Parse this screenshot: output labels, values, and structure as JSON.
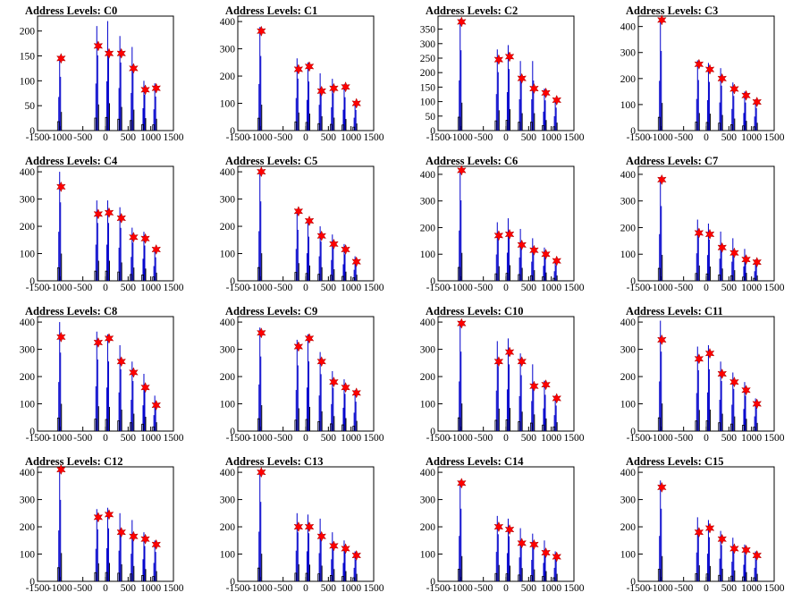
{
  "chart_data": [
    {
      "title": "Address Levels: C0",
      "type": "bar",
      "xlim": [
        -1500,
        1500
      ],
      "yticks": [
        0,
        50,
        100,
        150,
        200
      ],
      "ylim": [
        0,
        230
      ],
      "peaks_x": [
        -1000,
        -180,
        60,
        330,
        600,
        860,
        1100
      ],
      "peak_heights": [
        150,
        210,
        220,
        190,
        168,
        100,
        95
      ],
      "markers": [
        145,
        170,
        155,
        155,
        125,
        82,
        85
      ]
    },
    {
      "title": "Address Levels: C1",
      "type": "bar",
      "xlim": [
        -1500,
        1500
      ],
      "yticks": [
        0,
        100,
        200,
        300,
        400
      ],
      "ylim": [
        0,
        420
      ],
      "peaks_x": [
        -1000,
        -180,
        60,
        330,
        600,
        860,
        1100
      ],
      "peak_heights": [
        380,
        265,
        250,
        210,
        190,
        170,
        105
      ],
      "markers": [
        365,
        225,
        235,
        145,
        155,
        160,
        100
      ]
    },
    {
      "title": "Address Levels: C2",
      "type": "bar",
      "xlim": [
        -1500,
        1500
      ],
      "yticks": [
        0,
        50,
        100,
        150,
        200,
        250,
        300,
        350
      ],
      "ylim": [
        0,
        395
      ],
      "peaks_x": [
        -1000,
        -180,
        60,
        330,
        600,
        860,
        1100
      ],
      "peak_heights": [
        385,
        280,
        295,
        240,
        240,
        145,
        110
      ],
      "markers": [
        375,
        245,
        255,
        180,
        145,
        130,
        105
      ]
    },
    {
      "title": "Address Levels: C3",
      "type": "bar",
      "xlim": [
        -1500,
        1500
      ],
      "yticks": [
        0,
        100,
        200,
        300,
        400
      ],
      "ylim": [
        0,
        440
      ],
      "peaks_x": [
        -1000,
        -180,
        60,
        330,
        600,
        860,
        1100
      ],
      "peak_heights": [
        425,
        270,
        260,
        240,
        185,
        150,
        120
      ],
      "markers": [
        425,
        255,
        235,
        200,
        160,
        135,
        110
      ]
    },
    {
      "title": "Address Levels: C4",
      "type": "bar",
      "xlim": [
        -1500,
        1500
      ],
      "yticks": [
        0,
        100,
        200,
        300,
        400
      ],
      "ylim": [
        0,
        420
      ],
      "peaks_x": [
        -1000,
        -180,
        60,
        330,
        600,
        860,
        1100
      ],
      "peak_heights": [
        400,
        295,
        295,
        270,
        195,
        180,
        120
      ],
      "markers": [
        345,
        245,
        250,
        230,
        160,
        155,
        115
      ]
    },
    {
      "title": "Address Levels: C5",
      "type": "bar",
      "xlim": [
        -1500,
        1500
      ],
      "yticks": [
        0,
        100,
        200,
        300,
        400
      ],
      "ylim": [
        0,
        420
      ],
      "peaks_x": [
        -1000,
        -180,
        60,
        330,
        600,
        860,
        1100
      ],
      "peak_heights": [
        405,
        260,
        225,
        200,
        170,
        135,
        90
      ],
      "markers": [
        400,
        255,
        220,
        165,
        135,
        115,
        70
      ]
    },
    {
      "title": "Address Levels: C6",
      "type": "bar",
      "xlim": [
        -1500,
        1500
      ],
      "yticks": [
        0,
        100,
        200,
        300,
        400
      ],
      "ylim": [
        0,
        430
      ],
      "peaks_x": [
        -1000,
        -180,
        60,
        330,
        600,
        860,
        1100
      ],
      "peak_heights": [
        420,
        220,
        235,
        195,
        160,
        125,
        80
      ],
      "markers": [
        415,
        170,
        175,
        135,
        115,
        100,
        75
      ]
    },
    {
      "title": "Address Levels: C7",
      "type": "bar",
      "xlim": [
        -1500,
        1500
      ],
      "yticks": [
        0,
        100,
        200,
        300,
        400
      ],
      "ylim": [
        0,
        430
      ],
      "peaks_x": [
        -1000,
        -180,
        60,
        330,
        600,
        860,
        1100
      ],
      "peak_heights": [
        390,
        230,
        215,
        185,
        160,
        120,
        80
      ],
      "markers": [
        380,
        180,
        175,
        125,
        105,
        80,
        70
      ]
    },
    {
      "title": "Address Levels: C8",
      "type": "bar",
      "xlim": [
        -1500,
        1500
      ],
      "yticks": [
        0,
        100,
        200,
        300,
        400
      ],
      "ylim": [
        0,
        420
      ],
      "peaks_x": [
        -1000,
        -180,
        60,
        330,
        600,
        860,
        1100
      ],
      "peak_heights": [
        400,
        365,
        355,
        315,
        255,
        210,
        130
      ],
      "markers": [
        345,
        325,
        340,
        255,
        215,
        160,
        95
      ]
    },
    {
      "title": "Address Levels: C9",
      "type": "bar",
      "xlim": [
        -1500,
        1500
      ],
      "yticks": [
        0,
        100,
        200,
        300,
        400
      ],
      "ylim": [
        0,
        420
      ],
      "peaks_x": [
        -1000,
        -180,
        60,
        330,
        600,
        860,
        1100
      ],
      "peak_heights": [
        380,
        335,
        355,
        290,
        220,
        190,
        150
      ],
      "markers": [
        360,
        310,
        340,
        255,
        180,
        160,
        140
      ]
    },
    {
      "title": "Address Levels: C10",
      "type": "bar",
      "xlim": [
        -1500,
        1500
      ],
      "yticks": [
        0,
        100,
        200,
        300,
        400
      ],
      "ylim": [
        0,
        420
      ],
      "peaks_x": [
        -1000,
        -180,
        60,
        330,
        600,
        860,
        1100
      ],
      "peak_heights": [
        405,
        330,
        340,
        285,
        245,
        185,
        130
      ],
      "markers": [
        395,
        255,
        290,
        255,
        165,
        170,
        120
      ]
    },
    {
      "title": "Address Levels: C11",
      "type": "bar",
      "xlim": [
        -1500,
        1500
      ],
      "yticks": [
        0,
        100,
        200,
        300,
        400
      ],
      "ylim": [
        0,
        420
      ],
      "peaks_x": [
        -1000,
        -180,
        60,
        330,
        600,
        860,
        1100
      ],
      "peak_heights": [
        405,
        310,
        315,
        255,
        215,
        180,
        120
      ],
      "markers": [
        335,
        265,
        285,
        210,
        180,
        150,
        100
      ]
    },
    {
      "title": "Address Levels: C12",
      "type": "bar",
      "xlim": [
        -1500,
        1500
      ],
      "yticks": [
        0,
        100,
        200,
        300,
        400
      ],
      "ylim": [
        0,
        420
      ],
      "peaks_x": [
        -1000,
        -180,
        60,
        330,
        600,
        860,
        1100
      ],
      "peak_heights": [
        415,
        265,
        270,
        250,
        225,
        180,
        150
      ],
      "markers": [
        410,
        235,
        245,
        180,
        165,
        155,
        135
      ]
    },
    {
      "title": "Address Levels: C13",
      "type": "bar",
      "xlim": [
        -1500,
        1500
      ],
      "yticks": [
        0,
        100,
        200,
        300,
        400
      ],
      "ylim": [
        0,
        420
      ],
      "peaks_x": [
        -1000,
        -180,
        60,
        330,
        600,
        860,
        1100
      ],
      "peak_heights": [
        405,
        250,
        245,
        230,
        180,
        150,
        110
      ],
      "markers": [
        400,
        200,
        200,
        165,
        130,
        120,
        95
      ]
    },
    {
      "title": "Address Levels: C14",
      "type": "bar",
      "xlim": [
        -1500,
        1500
      ],
      "yticks": [
        0,
        100,
        200,
        300,
        400
      ],
      "ylim": [
        0,
        420
      ],
      "peaks_x": [
        -1000,
        -180,
        60,
        330,
        600,
        860,
        1100
      ],
      "peak_heights": [
        370,
        240,
        230,
        195,
        175,
        150,
        110
      ],
      "markers": [
        360,
        200,
        190,
        140,
        135,
        105,
        90
      ]
    },
    {
      "title": "Address Levels: C15",
      "type": "bar",
      "xlim": [
        -1500,
        1500
      ],
      "yticks": [
        0,
        100,
        200,
        300,
        400
      ],
      "ylim": [
        0,
        420
      ],
      "peaks_x": [
        -1000,
        -180,
        60,
        330,
        600,
        860,
        1100
      ],
      "peak_heights": [
        370,
        235,
        225,
        185,
        160,
        135,
        110
      ],
      "markers": [
        345,
        180,
        195,
        155,
        120,
        115,
        95
      ]
    }
  ],
  "x_tick_labels": [
    "-1500",
    "-1000",
    "-500",
    "0",
    "500",
    "1000",
    "1500"
  ],
  "x_tick_values": [
    -1500,
    -1000,
    -500,
    0,
    500,
    1000,
    1500
  ],
  "colors": {
    "histogram": "#0000cc",
    "secondary": "#000000",
    "marker": "#ff0000",
    "frame": "#000000"
  }
}
